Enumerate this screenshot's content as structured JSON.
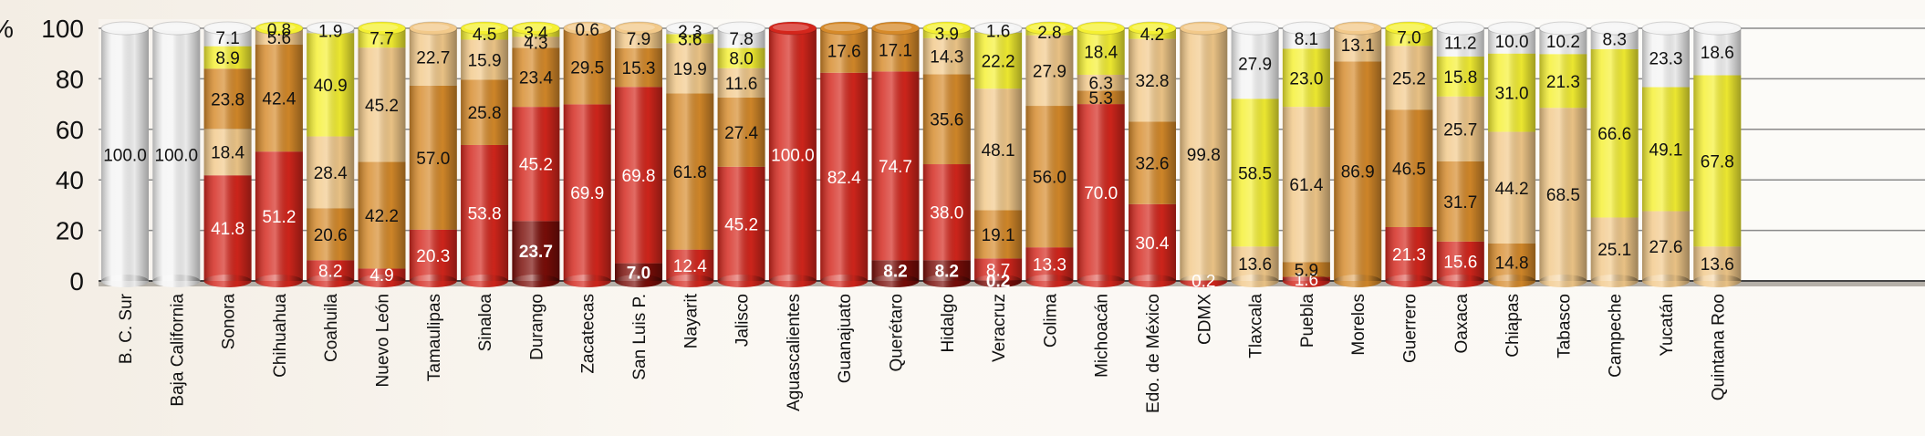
{
  "chart_data": {
    "type": "bar",
    "stacked": true,
    "percent": true,
    "y_axis_label": "%",
    "ylim": [
      0,
      100
    ],
    "yticks": [
      0,
      20,
      40,
      60,
      80,
      100
    ],
    "categories": [
      "B. C. Sur",
      "Baja California",
      "Sonora",
      "Chihuahua",
      "Coahuila",
      "Nuevo León",
      "Tamaulipas",
      "Sinaloa",
      "Durango",
      "Zacatecas",
      "San Luis P.",
      "Nayarit",
      "Jalisco",
      "Aguascalientes",
      "Guanajuato",
      "Querétaro",
      "Hidalgo",
      "Veracruz",
      "Colima",
      "Michoacán",
      "Edo. de México",
      "CDMX",
      "Tlaxcala",
      "Puebla",
      "Morelos",
      "Guerrero",
      "Oaxaca",
      "Chiapas",
      "Tabasco",
      "Campeche",
      "Yucatán",
      "Quintana Roo"
    ],
    "colors": {
      "dark_red": "#7a0d08",
      "red": "#d4261c",
      "orange": "#d68a2a",
      "tan": "#f2c98a",
      "yellow": "#f5f032",
      "white": "#f4f4f4"
    },
    "bars": [
      [
        {
          "c": "white",
          "v": 100.0,
          "l": "100.0"
        }
      ],
      [
        {
          "c": "white",
          "v": 100.0,
          "l": "100.0"
        }
      ],
      [
        {
          "c": "red",
          "v": 41.8,
          "l": "41.8"
        },
        {
          "c": "tan",
          "v": 18.4,
          "l": "18.4"
        },
        {
          "c": "orange",
          "v": 23.8,
          "l": "23.8"
        },
        {
          "c": "yellow",
          "v": 8.9,
          "l": "8.9"
        },
        {
          "c": "white",
          "v": 7.1,
          "l": "7.1"
        }
      ],
      [
        {
          "c": "red",
          "v": 51.2,
          "l": "51.2"
        },
        {
          "c": "orange",
          "v": 42.4,
          "l": "42.4"
        },
        {
          "c": "tan",
          "v": 5.6,
          "l": "5.6"
        },
        {
          "c": "yellow",
          "v": 0.8,
          "l": "0.8"
        }
      ],
      [
        {
          "c": "red",
          "v": 8.2,
          "l": "8.2"
        },
        {
          "c": "orange",
          "v": 20.6,
          "l": "20.6"
        },
        {
          "c": "tan",
          "v": 28.4,
          "l": "28.4"
        },
        {
          "c": "yellow",
          "v": 40.9,
          "l": "40.9"
        },
        {
          "c": "white",
          "v": 1.9,
          "l": "1.9"
        }
      ],
      [
        {
          "c": "red",
          "v": 4.9,
          "l": "4.9"
        },
        {
          "c": "orange",
          "v": 42.2,
          "l": "42.2"
        },
        {
          "c": "tan",
          "v": 45.2,
          "l": "45.2"
        },
        {
          "c": "yellow",
          "v": 7.7,
          "l": "7.7"
        }
      ],
      [
        {
          "c": "red",
          "v": 20.3,
          "l": "20.3"
        },
        {
          "c": "orange",
          "v": 57.0,
          "l": "57.0"
        },
        {
          "c": "tan",
          "v": 22.7,
          "l": "22.7"
        }
      ],
      [
        {
          "c": "red",
          "v": 53.8,
          "l": "53.8"
        },
        {
          "c": "orange",
          "v": 25.8,
          "l": "25.8"
        },
        {
          "c": "tan",
          "v": 15.9,
          "l": "15.9"
        },
        {
          "c": "yellow",
          "v": 4.5,
          "l": "4.5"
        }
      ],
      [
        {
          "c": "dark_red",
          "v": 23.7,
          "l": "23.7"
        },
        {
          "c": "red",
          "v": 45.2,
          "l": "45.2"
        },
        {
          "c": "orange",
          "v": 23.4,
          "l": "23.4"
        },
        {
          "c": "tan",
          "v": 4.3,
          "l": "4.3"
        },
        {
          "c": "yellow",
          "v": 3.4,
          "l": "3.4"
        }
      ],
      [
        {
          "c": "red",
          "v": 69.9,
          "l": "69.9"
        },
        {
          "c": "orange",
          "v": 29.5,
          "l": "29.5"
        },
        {
          "c": "tan",
          "v": 0.6,
          "l": "0.6"
        }
      ],
      [
        {
          "c": "dark_red",
          "v": 7.0,
          "l": "7.0"
        },
        {
          "c": "red",
          "v": 69.8,
          "l": "69.8"
        },
        {
          "c": "orange",
          "v": 15.3,
          "l": "15.3"
        },
        {
          "c": "tan",
          "v": 7.9,
          "l": "7.9"
        }
      ],
      [
        {
          "c": "red",
          "v": 12.4,
          "l": "12.4"
        },
        {
          "c": "orange",
          "v": 61.8,
          "l": "61.8"
        },
        {
          "c": "tan",
          "v": 19.9,
          "l": "19.9"
        },
        {
          "c": "yellow",
          "v": 3.6,
          "l": "3.6"
        },
        {
          "c": "white",
          "v": 2.3,
          "l": "2.3"
        }
      ],
      [
        {
          "c": "red",
          "v": 45.2,
          "l": "45.2"
        },
        {
          "c": "orange",
          "v": 27.4,
          "l": "27.4"
        },
        {
          "c": "tan",
          "v": 11.6,
          "l": "11.6"
        },
        {
          "c": "yellow",
          "v": 8.0,
          "l": "8.0"
        },
        {
          "c": "white",
          "v": 7.8,
          "l": "7.8"
        }
      ],
      [
        {
          "c": "red",
          "v": 100.0,
          "l": "100.0"
        }
      ],
      [
        {
          "c": "red",
          "v": 82.4,
          "l": "82.4"
        },
        {
          "c": "orange",
          "v": 17.6,
          "l": "17.6"
        }
      ],
      [
        {
          "c": "dark_red",
          "v": 8.2,
          "l": "8.2"
        },
        {
          "c": "red",
          "v": 74.7,
          "l": "74.7"
        },
        {
          "c": "orange",
          "v": 17.1,
          "l": "17.1"
        }
      ],
      [
        {
          "c": "dark_red",
          "v": 8.2,
          "l": "8.2"
        },
        {
          "c": "red",
          "v": 38.0,
          "l": "38.0"
        },
        {
          "c": "orange",
          "v": 35.6,
          "l": "35.6"
        },
        {
          "c": "tan",
          "v": 14.3,
          "l": "14.3"
        },
        {
          "c": "yellow",
          "v": 3.9,
          "l": "3.9"
        }
      ],
      [
        {
          "c": "dark_red",
          "v": 0.2,
          "l": "0.2"
        },
        {
          "c": "red",
          "v": 8.7,
          "l": "8.7"
        },
        {
          "c": "orange",
          "v": 19.1,
          "l": "19.1"
        },
        {
          "c": "tan",
          "v": 48.1,
          "l": "48.1"
        },
        {
          "c": "yellow",
          "v": 22.2,
          "l": "22.2"
        },
        {
          "c": "white",
          "v": 1.6,
          "l": "1.6"
        }
      ],
      [
        {
          "c": "red",
          "v": 13.3,
          "l": "13.3"
        },
        {
          "c": "orange",
          "v": 56.0,
          "l": "56.0"
        },
        {
          "c": "tan",
          "v": 27.9,
          "l": "27.9"
        },
        {
          "c": "yellow",
          "v": 2.8,
          "l": "2.8"
        }
      ],
      [
        {
          "c": "red",
          "v": 70.0,
          "l": "70.0"
        },
        {
          "c": "orange",
          "v": 5.3,
          "l": "5.3"
        },
        {
          "c": "tan",
          "v": 6.3,
          "l": "6.3"
        },
        {
          "c": "yellow",
          "v": 18.4,
          "l": "18.4"
        }
      ],
      [
        {
          "c": "red",
          "v": 30.4,
          "l": "30.4"
        },
        {
          "c": "orange",
          "v": 32.6,
          "l": "32.6"
        },
        {
          "c": "tan",
          "v": 32.8,
          "l": "32.8"
        },
        {
          "c": "yellow",
          "v": 4.2,
          "l": "4.2"
        }
      ],
      [
        {
          "c": "red",
          "v": 0.2,
          "l": "0.2"
        },
        {
          "c": "tan",
          "v": 99.8,
          "l": "99.8"
        }
      ],
      [
        {
          "c": "tan",
          "v": 13.6,
          "l": "13.6"
        },
        {
          "c": "yellow",
          "v": 58.5,
          "l": "58.5"
        },
        {
          "c": "white",
          "v": 27.9,
          "l": "27.9"
        }
      ],
      [
        {
          "c": "red",
          "v": 1.6,
          "l": "1.6"
        },
        {
          "c": "orange",
          "v": 5.9,
          "l": "5.9"
        },
        {
          "c": "tan",
          "v": 61.4,
          "l": "61.4"
        },
        {
          "c": "yellow",
          "v": 23.0,
          "l": "23.0"
        },
        {
          "c": "white",
          "v": 8.1,
          "l": "8.1"
        }
      ],
      [
        {
          "c": "orange",
          "v": 86.9,
          "l": "86.9"
        },
        {
          "c": "tan",
          "v": 13.1,
          "l": "13.1"
        }
      ],
      [
        {
          "c": "red",
          "v": 21.3,
          "l": "21.3"
        },
        {
          "c": "orange",
          "v": 46.5,
          "l": "46.5"
        },
        {
          "c": "tan",
          "v": 25.2,
          "l": "25.2"
        },
        {
          "c": "yellow",
          "v": 7.0,
          "l": "7.0"
        }
      ],
      [
        {
          "c": "red",
          "v": 15.6,
          "l": "15.6"
        },
        {
          "c": "orange",
          "v": 31.7,
          "l": "31.7"
        },
        {
          "c": "tan",
          "v": 25.7,
          "l": "25.7"
        },
        {
          "c": "yellow",
          "v": 15.8,
          "l": "15.8"
        },
        {
          "c": "white",
          "v": 11.2,
          "l": "11.2"
        }
      ],
      [
        {
          "c": "orange",
          "v": 14.8,
          "l": "14.8"
        },
        {
          "c": "tan",
          "v": 44.2,
          "l": "44.2"
        },
        {
          "c": "yellow",
          "v": 31.0,
          "l": "31.0"
        },
        {
          "c": "white",
          "v": 10.0,
          "l": "10.0"
        }
      ],
      [
        {
          "c": "tan",
          "v": 68.5,
          "l": "68.5"
        },
        {
          "c": "yellow",
          "v": 21.3,
          "l": "21.3"
        },
        {
          "c": "white",
          "v": 10.2,
          "l": "10.2"
        }
      ],
      [
        {
          "c": "tan",
          "v": 25.1,
          "l": "25.1"
        },
        {
          "c": "yellow",
          "v": 66.6,
          "l": "66.6"
        },
        {
          "c": "white",
          "v": 8.3,
          "l": "8.3"
        }
      ],
      [
        {
          "c": "tan",
          "v": 27.6,
          "l": "27.6"
        },
        {
          "c": "yellow",
          "v": 49.1,
          "l": "49.1"
        },
        {
          "c": "white",
          "v": 23.3,
          "l": "23.3"
        }
      ],
      [
        {
          "c": "tan",
          "v": 13.6,
          "l": "13.6"
        },
        {
          "c": "yellow",
          "v": 67.8,
          "l": "67.8"
        },
        {
          "c": "white",
          "v": 18.6,
          "l": "18.6"
        }
      ]
    ]
  }
}
